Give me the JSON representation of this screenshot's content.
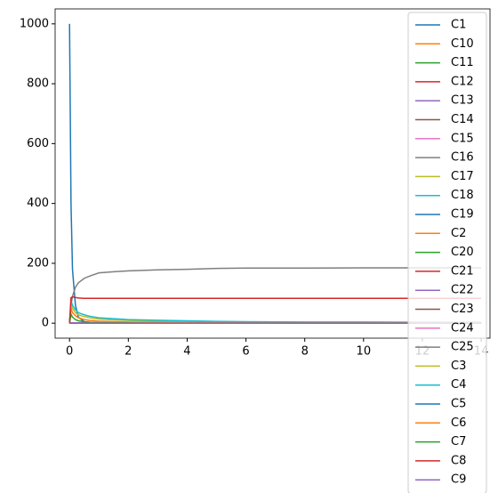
{
  "chart_data": {
    "type": "line",
    "x": [
      0,
      0.05,
      0.1,
      0.2,
      0.3,
      0.5,
      0.7,
      1,
      1.5,
      2,
      3,
      4,
      5,
      6,
      8,
      10,
      12,
      14
    ],
    "xlim": [
      -0.49,
      14.3
    ],
    "xticks": [
      0,
      2,
      4,
      6,
      8,
      10,
      12,
      14
    ],
    "ylim": [
      -50,
      1050
    ],
    "yticks": [
      0,
      200,
      400,
      600,
      800,
      1000
    ],
    "grid": false,
    "legend": "upper right",
    "series": [
      {
        "name": "C1",
        "color": "#1f77b4",
        "values": [
          1000,
          400,
          180,
          60,
          20,
          5,
          2,
          1,
          0,
          0,
          0,
          0,
          0,
          0,
          0,
          0,
          0,
          0
        ]
      },
      {
        "name": "C10",
        "color": "#ff7f0e",
        "values": [
          0,
          0,
          0,
          0,
          0,
          0,
          0,
          0,
          0,
          0,
          0,
          0,
          0,
          0,
          0,
          0,
          0,
          0
        ]
      },
      {
        "name": "C11",
        "color": "#2ca02c",
        "values": [
          0,
          0,
          0,
          0,
          0,
          0,
          0,
          0,
          0,
          0,
          0,
          0,
          0,
          0,
          0,
          0,
          0,
          0
        ]
      },
      {
        "name": "C12",
        "color": "#d62728",
        "values": [
          0,
          0,
          0,
          0,
          0,
          0,
          0,
          0,
          0,
          0,
          0,
          0,
          0,
          0,
          0,
          0,
          0,
          0
        ]
      },
      {
        "name": "C13",
        "color": "#9467bd",
        "values": [
          0,
          0,
          0,
          0,
          0,
          0,
          0,
          0,
          0,
          0,
          0,
          0,
          0,
          0,
          0,
          0,
          0,
          0
        ]
      },
      {
        "name": "C14",
        "color": "#8c564b",
        "values": [
          0,
          0,
          0,
          0,
          0,
          0,
          0,
          0,
          0,
          0,
          0,
          0,
          0,
          0,
          0,
          0,
          0,
          0
        ]
      },
      {
        "name": "C15",
        "color": "#e377c2",
        "values": [
          0,
          0,
          0,
          0,
          0,
          0,
          0,
          0,
          0,
          0,
          0,
          0,
          0,
          0,
          0,
          0,
          0,
          0
        ]
      },
      {
        "name": "C16",
        "color": "#7f7f7f",
        "values": [
          0,
          0,
          0,
          0,
          0,
          0,
          0,
          0,
          0,
          0,
          0,
          0,
          0,
          0,
          0,
          0,
          0,
          0
        ]
      },
      {
        "name": "C17",
        "color": "#bcbd22",
        "values": [
          0,
          0,
          0,
          0,
          0,
          0,
          0,
          0,
          0,
          0,
          0,
          0,
          0,
          0,
          0,
          0,
          0,
          0
        ]
      },
      {
        "name": "C18",
        "color": "#17becf",
        "values": [
          0,
          0,
          0,
          0,
          0,
          0,
          0,
          0,
          0,
          0,
          0,
          0,
          0,
          0,
          0,
          0,
          0,
          0
        ]
      },
      {
        "name": "C19",
        "color": "#1f77b4",
        "values": [
          0,
          0,
          0,
          0,
          0,
          0,
          0,
          0,
          0,
          0,
          0,
          0,
          0,
          0,
          0,
          0,
          0,
          0
        ]
      },
      {
        "name": "C2",
        "color": "#ff7f0e",
        "values": [
          0,
          0,
          0,
          0,
          0,
          0,
          0,
          0,
          0,
          0,
          0,
          0,
          0,
          0,
          0,
          0,
          0,
          0
        ]
      },
      {
        "name": "C20",
        "color": "#2ca02c",
        "values": [
          0,
          0,
          0,
          0,
          0,
          0,
          0,
          0,
          0,
          0,
          0,
          0,
          0,
          0,
          0,
          0,
          0,
          0
        ]
      },
      {
        "name": "C21",
        "color": "#d62728",
        "values": [
          0,
          0,
          0,
          0,
          0,
          0,
          0,
          0,
          0,
          0,
          0,
          0,
          0,
          0,
          0,
          0,
          0,
          0
        ]
      },
      {
        "name": "C22",
        "color": "#9467bd",
        "values": [
          0,
          0,
          0,
          0,
          0,
          0,
          0,
          0,
          0,
          0,
          0,
          0,
          0,
          0,
          0,
          0,
          0,
          0
        ]
      },
      {
        "name": "C23",
        "color": "#8c564b",
        "values": [
          0,
          0,
          0,
          0,
          0,
          0,
          0,
          0,
          0,
          0,
          0,
          0,
          0,
          0,
          0,
          0,
          0,
          0
        ]
      },
      {
        "name": "C24",
        "color": "#e377c2",
        "values": [
          0,
          0,
          0,
          0,
          0,
          0,
          0,
          0,
          0,
          0,
          0,
          0,
          0,
          0,
          0,
          0,
          0,
          0
        ]
      },
      {
        "name": "C25",
        "color": "#7f7f7f",
        "values": [
          0,
          60,
          90,
          120,
          135,
          150,
          158,
          168,
          172,
          175,
          178,
          180,
          183,
          184,
          184,
          185,
          185,
          185
        ]
      },
      {
        "name": "C3",
        "color": "#bcbd22",
        "values": [
          0,
          60,
          50,
          35,
          28,
          22,
          18,
          14,
          11,
          9,
          7,
          5,
          4,
          3,
          3,
          2,
          2,
          2
        ]
      },
      {
        "name": "C4",
        "color": "#17becf",
        "values": [
          0,
          75,
          60,
          45,
          35,
          28,
          23,
          18,
          15,
          12,
          10,
          8,
          6,
          5,
          4,
          4,
          3,
          3
        ]
      },
      {
        "name": "C5",
        "color": "#1f77b4",
        "values": [
          0,
          0,
          0,
          0,
          0,
          0,
          0,
          0,
          0,
          0,
          0,
          0,
          0,
          0,
          0,
          0,
          0,
          0
        ]
      },
      {
        "name": "C6",
        "color": "#ff7f0e",
        "values": [
          0,
          50,
          35,
          25,
          18,
          12,
          9,
          7,
          5,
          4,
          3,
          2,
          2,
          1,
          1,
          1,
          1,
          1
        ]
      },
      {
        "name": "C7",
        "color": "#2ca02c",
        "values": [
          0,
          30,
          20,
          12,
          8,
          5,
          3,
          2,
          1,
          1,
          0,
          0,
          0,
          0,
          0,
          0,
          0,
          0
        ]
      },
      {
        "name": "C8",
        "color": "#d62728",
        "values": [
          0,
          85,
          88,
          86,
          84,
          83,
          83,
          83,
          83,
          83,
          83,
          83,
          83,
          83,
          83,
          83,
          83,
          83
        ]
      },
      {
        "name": "C9",
        "color": "#9467bd",
        "values": [
          0,
          0,
          0,
          0,
          0,
          0,
          0,
          0,
          0,
          0,
          0,
          0,
          0,
          0,
          0,
          0,
          0,
          0
        ]
      }
    ]
  }
}
